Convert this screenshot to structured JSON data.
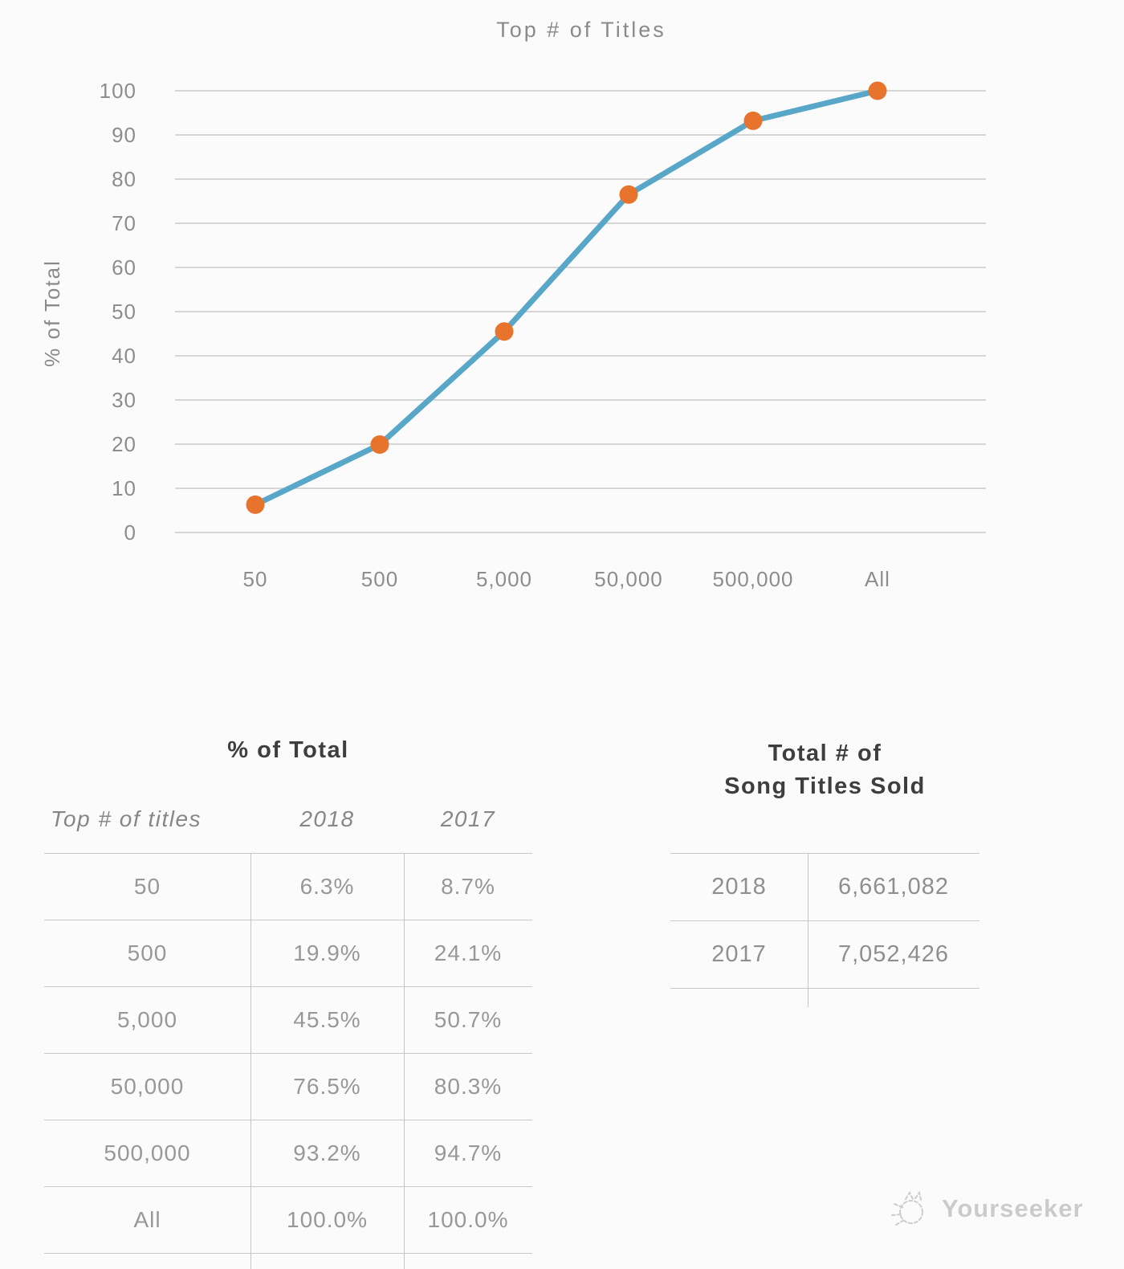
{
  "chart": {
    "title": "Top # of Titles",
    "ylabel": "% of Total"
  },
  "chart_data": {
    "type": "line",
    "title": "Top # of Titles",
    "xlabel": "",
    "ylabel": "% of Total",
    "categories": [
      "50",
      "500",
      "5,000",
      "50,000",
      "500,000",
      "All"
    ],
    "series": [
      {
        "name": "2018",
        "values": [
          6.3,
          19.9,
          45.5,
          76.5,
          93.2,
          100.0
        ]
      }
    ],
    "ylim": [
      0,
      100
    ],
    "yticks": [
      0,
      10,
      20,
      30,
      40,
      50,
      60,
      70,
      80,
      90,
      100
    ],
    "grid": true,
    "legend": "none",
    "line_color": "#58a7c9",
    "marker_color": "#e8732c"
  },
  "pct_table": {
    "heading": "% of Total",
    "columns": {
      "titles": "Top # of titles",
      "y2018": "2018",
      "y2017": "2017"
    },
    "rows": [
      {
        "titles": "50",
        "y2018": "6.3%",
        "y2017": "8.7%"
      },
      {
        "titles": "500",
        "y2018": "19.9%",
        "y2017": "24.1%"
      },
      {
        "titles": "5,000",
        "y2018": "45.5%",
        "y2017": "50.7%"
      },
      {
        "titles": "50,000",
        "y2018": "76.5%",
        "y2017": "80.3%"
      },
      {
        "titles": "500,000",
        "y2018": "93.2%",
        "y2017": "94.7%"
      },
      {
        "titles": "All",
        "y2018": "100.0%",
        "y2017": "100.0%"
      }
    ]
  },
  "totals_table": {
    "heading_line1": "Total # of",
    "heading_line2": "Song Titles Sold",
    "rows": [
      {
        "year": "2018",
        "value": "6,661,082"
      },
      {
        "year": "2017",
        "value": "7,052,426"
      }
    ]
  },
  "watermark": {
    "text": "Yourseeker"
  },
  "colors": {
    "line": "#58a7c9",
    "marker": "#e8732c",
    "gridline": "#d6d6d6",
    "axis_text": "#8d8d8d",
    "heading_text": "#3e3e3e",
    "table_text": "#989898",
    "border": "#c8c8c8",
    "watermark_text": "#cbcbcb",
    "background": "#fbfbfb"
  }
}
